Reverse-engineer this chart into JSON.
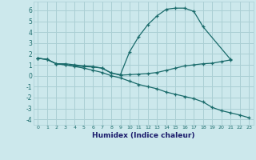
{
  "xlabel": "Humidex (Indice chaleur)",
  "bg_color": "#cce8ec",
  "grid_color": "#aacfd4",
  "line_color": "#1a6b6b",
  "xlim": [
    -0.5,
    23.5
  ],
  "ylim": [
    -4.5,
    6.8
  ],
  "xticks": [
    0,
    1,
    2,
    3,
    4,
    5,
    6,
    7,
    8,
    9,
    10,
    11,
    12,
    13,
    14,
    15,
    16,
    17,
    18,
    19,
    20,
    21,
    22,
    23
  ],
  "yticks": [
    -4,
    -3,
    -2,
    -1,
    0,
    1,
    2,
    3,
    4,
    5,
    6
  ],
  "line1_x": [
    0,
    1,
    2,
    3,
    4,
    5,
    6,
    7,
    8,
    9,
    10,
    11,
    12,
    13,
    14,
    15,
    16,
    17,
    18,
    21
  ],
  "line1_y": [
    1.6,
    1.5,
    1.1,
    1.1,
    1.0,
    0.9,
    0.85,
    0.7,
    0.25,
    0.1,
    2.2,
    3.6,
    4.7,
    5.5,
    6.1,
    6.2,
    6.2,
    5.9,
    4.5,
    1.5
  ],
  "line2_x": [
    0,
    1,
    2,
    3,
    4,
    5,
    6,
    7,
    8,
    9,
    10,
    11,
    12,
    13,
    14,
    15,
    16,
    17,
    18,
    19,
    20,
    21
  ],
  "line2_y": [
    1.6,
    1.5,
    1.1,
    1.0,
    0.9,
    0.85,
    0.8,
    0.7,
    0.25,
    0.05,
    0.1,
    0.15,
    0.2,
    0.3,
    0.5,
    0.7,
    0.9,
    1.0,
    1.1,
    1.15,
    1.3,
    1.45
  ],
  "line3_x": [
    0,
    1,
    2,
    3,
    4,
    5,
    6,
    7,
    8,
    9,
    10,
    11,
    12,
    13,
    14,
    15,
    16,
    17,
    18,
    19,
    20,
    21,
    22,
    23
  ],
  "line3_y": [
    1.6,
    1.5,
    1.1,
    1.0,
    0.85,
    0.7,
    0.5,
    0.3,
    0.0,
    -0.2,
    -0.5,
    -0.8,
    -1.0,
    -1.2,
    -1.5,
    -1.7,
    -1.9,
    -2.1,
    -2.4,
    -2.9,
    -3.2,
    -3.4,
    -3.6,
    -3.85
  ]
}
